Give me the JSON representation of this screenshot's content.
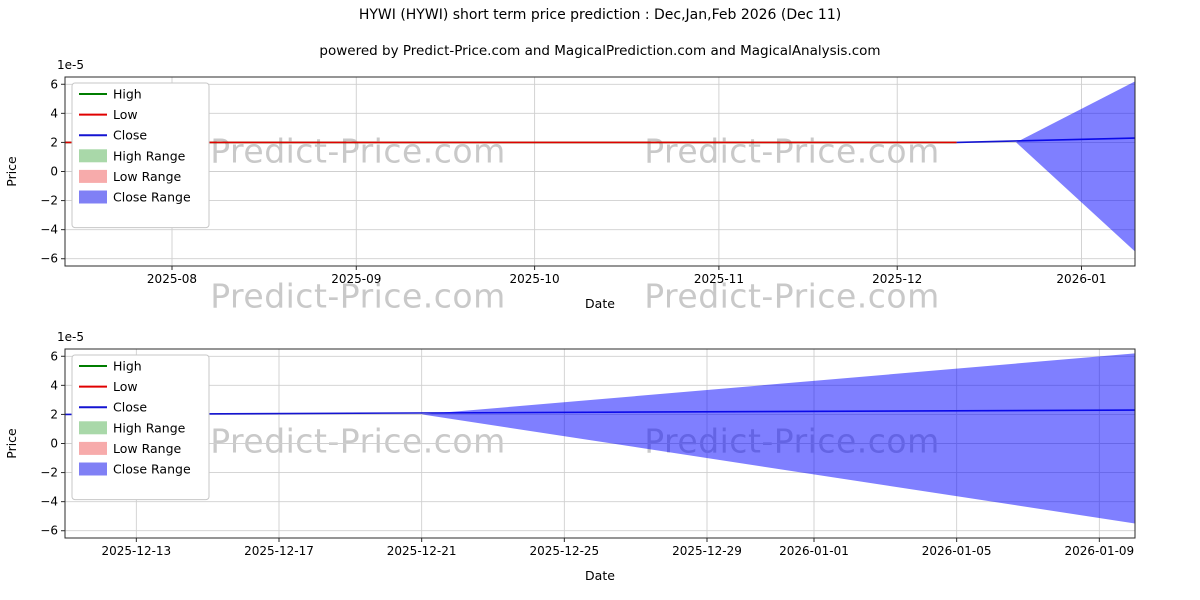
{
  "watermark": {
    "text": "Predict-Price.com"
  },
  "chart_data": [
    {
      "type": "line",
      "title": "HYWI (HYWI) short term price prediction : Dec,Jan,Feb 2026 (Dec 11)",
      "subtitle": "powered by Predict-Price.com and MagicalPrediction.com and MagicalAnalysis.com",
      "xlabel": "Date",
      "ylabel": "Price",
      "y_offset_label": "1e-5",
      "ylim": [
        -6.5,
        6.5
      ],
      "y_ticks": [
        -6,
        -4,
        -2,
        0,
        2,
        4,
        6
      ],
      "x_range": [
        "2025-07-14",
        "2026-01-10"
      ],
      "x_ticks": [
        {
          "date": "2025-08-01",
          "label": "2025-08"
        },
        {
          "date": "2025-09-01",
          "label": "2025-09"
        },
        {
          "date": "2025-10-01",
          "label": "2025-10"
        },
        {
          "date": "2025-11-01",
          "label": "2025-11"
        },
        {
          "date": "2025-12-01",
          "label": "2025-12"
        },
        {
          "date": "2026-01-01",
          "label": "2026-01"
        }
      ],
      "grid": true,
      "legend": {
        "position": "upper-left",
        "entries": [
          {
            "label": "High",
            "color": "#007d00",
            "swatch": "line"
          },
          {
            "label": "Low",
            "color": "#e00000",
            "swatch": "line"
          },
          {
            "label": "Close",
            "color": "#1414d2",
            "swatch": "line"
          },
          {
            "label": "High Range",
            "color": "#a9d8a9",
            "swatch": "patch"
          },
          {
            "label": "Low Range",
            "color": "#f7abab",
            "swatch": "patch"
          },
          {
            "label": "Close Range",
            "color": "#8080f5",
            "swatch": "patch"
          }
        ]
      },
      "series": [
        {
          "name": "High",
          "kind": "line",
          "color": "#007d00",
          "points": [
            [
              "2025-07-14",
              2.0
            ],
            [
              "2025-12-11",
              2.0
            ]
          ]
        },
        {
          "name": "Low",
          "kind": "line",
          "color": "#e00000",
          "points": [
            [
              "2025-07-14",
              2.0
            ],
            [
              "2025-12-11",
              2.0
            ]
          ]
        },
        {
          "name": "Close",
          "kind": "line",
          "color": "#1414d2",
          "points": [
            [
              "2025-12-11",
              2.0
            ],
            [
              "2026-01-10",
              2.3
            ]
          ]
        },
        {
          "name": "Close Range",
          "kind": "band",
          "color": "#0000ff",
          "opacity": 0.5,
          "points": [
            [
              "2025-12-21",
              2.0,
              2.0
            ],
            [
              "2026-01-10",
              -5.5,
              6.2
            ]
          ]
        }
      ]
    },
    {
      "type": "line",
      "title": "",
      "subtitle": "",
      "xlabel": "Date",
      "ylabel": "Price",
      "y_offset_label": "1e-5",
      "ylim": [
        -6.5,
        6.5
      ],
      "y_ticks": [
        -6,
        -4,
        -2,
        0,
        2,
        4,
        6
      ],
      "x_range": [
        "2025-12-11",
        "2026-01-10"
      ],
      "x_ticks": [
        {
          "date": "2025-12-13",
          "label": "2025-12-13"
        },
        {
          "date": "2025-12-17",
          "label": "2025-12-17"
        },
        {
          "date": "2025-12-21",
          "label": "2025-12-21"
        },
        {
          "date": "2025-12-25",
          "label": "2025-12-25"
        },
        {
          "date": "2025-12-29",
          "label": "2025-12-29"
        },
        {
          "date": "2026-01-01",
          "label": "2026-01-01"
        },
        {
          "date": "2026-01-05",
          "label": "2026-01-05"
        },
        {
          "date": "2026-01-09",
          "label": "2026-01-09"
        }
      ],
      "grid": true,
      "legend": {
        "position": "upper-left",
        "entries": [
          {
            "label": "High",
            "color": "#007d00",
            "swatch": "line"
          },
          {
            "label": "Low",
            "color": "#e00000",
            "swatch": "line"
          },
          {
            "label": "Close",
            "color": "#1414d2",
            "swatch": "line"
          },
          {
            "label": "High Range",
            "color": "#a9d8a9",
            "swatch": "patch"
          },
          {
            "label": "Low Range",
            "color": "#f7abab",
            "swatch": "patch"
          },
          {
            "label": "Close Range",
            "color": "#8080f5",
            "swatch": "patch"
          }
        ]
      },
      "series": [
        {
          "name": "Close",
          "kind": "line",
          "color": "#1414d2",
          "points": [
            [
              "2025-12-11",
              2.0
            ],
            [
              "2026-01-10",
              2.3
            ]
          ]
        },
        {
          "name": "Close Range",
          "kind": "band",
          "color": "#0000ff",
          "opacity": 0.5,
          "points": [
            [
              "2025-12-21",
              2.0,
              2.0
            ],
            [
              "2026-01-10",
              -5.5,
              6.2
            ]
          ]
        }
      ]
    }
  ]
}
